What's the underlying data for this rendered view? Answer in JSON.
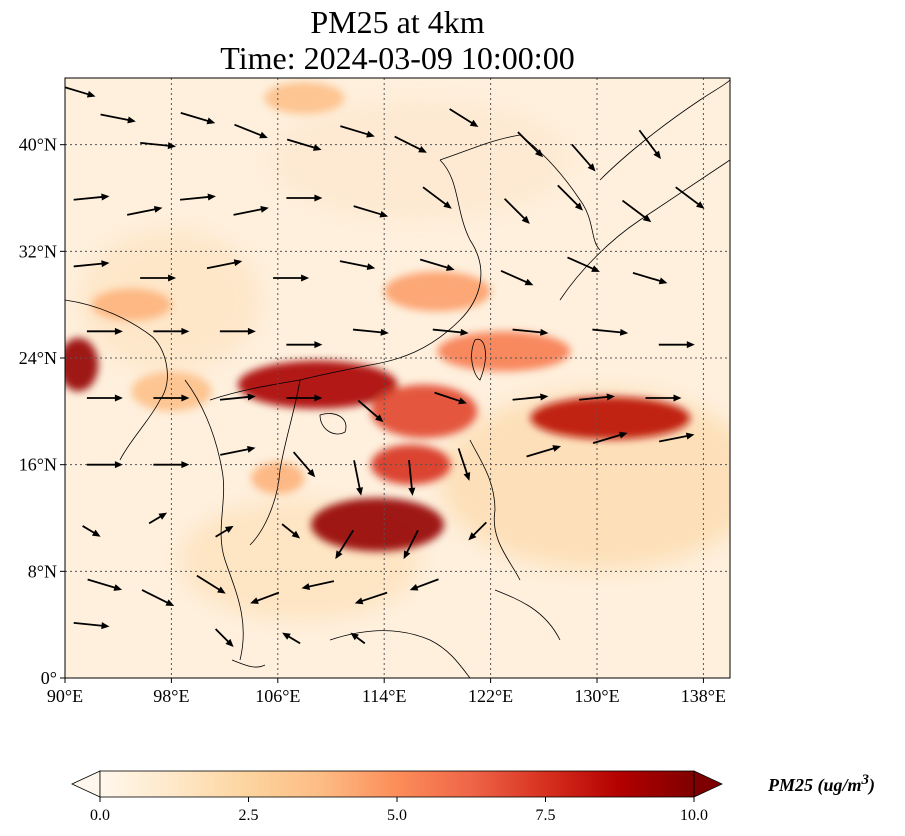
{
  "title_line1": "PM25 at 4km",
  "title_line2": "Time: 2024-03-09 10:00:00",
  "map": {
    "lon_range": [
      90,
      140
    ],
    "lat_range": [
      0,
      45
    ],
    "lon_ticks": [
      {
        "value": 90,
        "label": "90°E"
      },
      {
        "value": 98,
        "label": "98°E"
      },
      {
        "value": 106,
        "label": "106°E"
      },
      {
        "value": 114,
        "label": "114°E"
      },
      {
        "value": 122,
        "label": "122°E"
      },
      {
        "value": 130,
        "label": "130°E"
      },
      {
        "value": 138,
        "label": "138°E"
      }
    ],
    "lat_ticks": [
      {
        "value": 0,
        "label": "0°"
      },
      {
        "value": 8,
        "label": "8°N"
      },
      {
        "value": 16,
        "label": "16°N"
      },
      {
        "value": 24,
        "label": "24°N"
      },
      {
        "value": 32,
        "label": "32°N"
      },
      {
        "value": 40,
        "label": "40°N"
      }
    ],
    "gridlines": "dotted",
    "plumes": [
      {
        "lon": 109,
        "lat": 22.0,
        "rx": 6,
        "ry": 1.8,
        "value": 9.0
      },
      {
        "lon": 117,
        "lat": 20.0,
        "rx": 4,
        "ry": 2.0,
        "value": 7.0
      },
      {
        "lon": 113.5,
        "lat": 11.5,
        "rx": 5,
        "ry": 2.0,
        "value": 9.5
      },
      {
        "lon": 116,
        "lat": 16.0,
        "rx": 3,
        "ry": 1.5,
        "value": 7.5
      },
      {
        "lon": 131,
        "lat": 19.5,
        "rx": 6,
        "ry": 1.6,
        "value": 8.5
      },
      {
        "lon": 123,
        "lat": 24.5,
        "rx": 5,
        "ry": 1.5,
        "value": 5.5
      },
      {
        "lon": 118,
        "lat": 29.0,
        "rx": 4,
        "ry": 1.5,
        "value": 4.5
      },
      {
        "lon": 91,
        "lat": 23.5,
        "rx": 1.5,
        "ry": 2.0,
        "value": 9.5
      },
      {
        "lon": 95,
        "lat": 28.0,
        "rx": 3,
        "ry": 1.2,
        "value": 4.0
      },
      {
        "lon": 108,
        "lat": 43.5,
        "rx": 3,
        "ry": 1.2,
        "value": 3.5
      },
      {
        "lon": 106,
        "lat": 15.0,
        "rx": 2,
        "ry": 1.2,
        "value": 4.0
      },
      {
        "lon": 98,
        "lat": 21.5,
        "rx": 3,
        "ry": 1.5,
        "value": 3.5
      }
    ],
    "wind_arrows": [
      {
        "lon": 91,
        "lat": 44,
        "u": 1.0,
        "v": -0.3
      },
      {
        "lon": 94,
        "lat": 42,
        "u": 1.0,
        "v": -0.2
      },
      {
        "lon": 97,
        "lat": 40,
        "u": 1.0,
        "v": -0.1
      },
      {
        "lon": 100,
        "lat": 42,
        "u": 1.0,
        "v": -0.3
      },
      {
        "lon": 104,
        "lat": 41,
        "u": 1.0,
        "v": -0.4
      },
      {
        "lon": 108,
        "lat": 40,
        "u": 1.0,
        "v": -0.3
      },
      {
        "lon": 112,
        "lat": 41,
        "u": 1.0,
        "v": -0.3
      },
      {
        "lon": 116,
        "lat": 40,
        "u": 1.0,
        "v": -0.5
      },
      {
        "lon": 120,
        "lat": 42,
        "u": 0.8,
        "v": -0.5
      },
      {
        "lon": 125,
        "lat": 40,
        "u": 0.7,
        "v": -0.7
      },
      {
        "lon": 129,
        "lat": 39,
        "u": 0.7,
        "v": -0.8
      },
      {
        "lon": 134,
        "lat": 40,
        "u": 0.6,
        "v": -0.8
      },
      {
        "lon": 92,
        "lat": 36,
        "u": 1.0,
        "v": 0.1
      },
      {
        "lon": 96,
        "lat": 35,
        "u": 1.0,
        "v": 0.2
      },
      {
        "lon": 100,
        "lat": 36,
        "u": 1.0,
        "v": 0.1
      },
      {
        "lon": 104,
        "lat": 35,
        "u": 1.0,
        "v": 0.2
      },
      {
        "lon": 108,
        "lat": 36,
        "u": 1.0,
        "v": 0.0
      },
      {
        "lon": 113,
        "lat": 35,
        "u": 1.0,
        "v": -0.3
      },
      {
        "lon": 118,
        "lat": 36,
        "u": 0.8,
        "v": -0.6
      },
      {
        "lon": 124,
        "lat": 35,
        "u": 0.7,
        "v": -0.7
      },
      {
        "lon": 128,
        "lat": 36,
        "u": 0.7,
        "v": -0.7
      },
      {
        "lon": 133,
        "lat": 35,
        "u": 0.8,
        "v": -0.6
      },
      {
        "lon": 137,
        "lat": 36,
        "u": 0.8,
        "v": -0.6
      },
      {
        "lon": 92,
        "lat": 31,
        "u": 1.0,
        "v": 0.1
      },
      {
        "lon": 97,
        "lat": 30,
        "u": 1.0,
        "v": 0.0
      },
      {
        "lon": 102,
        "lat": 31,
        "u": 1.0,
        "v": 0.2
      },
      {
        "lon": 107,
        "lat": 30,
        "u": 1.0,
        "v": 0.0
      },
      {
        "lon": 112,
        "lat": 31,
        "u": 1.0,
        "v": -0.2
      },
      {
        "lon": 118,
        "lat": 31,
        "u": 1.0,
        "v": -0.3
      },
      {
        "lon": 124,
        "lat": 30,
        "u": 0.9,
        "v": -0.4
      },
      {
        "lon": 129,
        "lat": 31,
        "u": 0.9,
        "v": -0.4
      },
      {
        "lon": 134,
        "lat": 30,
        "u": 1.0,
        "v": -0.3
      },
      {
        "lon": 93,
        "lat": 26,
        "u": 1.0,
        "v": 0.0
      },
      {
        "lon": 98,
        "lat": 26,
        "u": 1.0,
        "v": 0.0
      },
      {
        "lon": 103,
        "lat": 26,
        "u": 1.0,
        "v": 0.0
      },
      {
        "lon": 108,
        "lat": 25,
        "u": 1.0,
        "v": 0.0
      },
      {
        "lon": 113,
        "lat": 26,
        "u": 1.0,
        "v": -0.1
      },
      {
        "lon": 119,
        "lat": 26,
        "u": 1.0,
        "v": -0.1
      },
      {
        "lon": 125,
        "lat": 26,
        "u": 1.0,
        "v": -0.1
      },
      {
        "lon": 131,
        "lat": 26,
        "u": 1.0,
        "v": -0.1
      },
      {
        "lon": 136,
        "lat": 25,
        "u": 1.0,
        "v": 0.0
      },
      {
        "lon": 93,
        "lat": 21,
        "u": 1.0,
        "v": 0.0
      },
      {
        "lon": 98,
        "lat": 21,
        "u": 1.0,
        "v": 0.0
      },
      {
        "lon": 103,
        "lat": 21,
        "u": 1.0,
        "v": 0.1
      },
      {
        "lon": 108,
        "lat": 21,
        "u": 1.0,
        "v": 0.0
      },
      {
        "lon": 113,
        "lat": 20,
        "u": 0.7,
        "v": -0.6
      },
      {
        "lon": 119,
        "lat": 21,
        "u": 0.9,
        "v": -0.3
      },
      {
        "lon": 125,
        "lat": 21,
        "u": 1.0,
        "v": 0.1
      },
      {
        "lon": 130,
        "lat": 21,
        "u": 1.0,
        "v": 0.1
      },
      {
        "lon": 135,
        "lat": 21,
        "u": 1.0,
        "v": 0.0
      },
      {
        "lon": 93,
        "lat": 16,
        "u": 1.0,
        "v": 0.0
      },
      {
        "lon": 98,
        "lat": 16,
        "u": 1.0,
        "v": 0.0
      },
      {
        "lon": 103,
        "lat": 17,
        "u": 1.0,
        "v": 0.2
      },
      {
        "lon": 108,
        "lat": 16,
        "u": 0.6,
        "v": -0.7
      },
      {
        "lon": 112,
        "lat": 15,
        "u": 0.2,
        "v": -1.0
      },
      {
        "lon": 116,
        "lat": 15,
        "u": 0.1,
        "v": -1.0
      },
      {
        "lon": 120,
        "lat": 16,
        "u": 0.3,
        "v": -0.9
      },
      {
        "lon": 126,
        "lat": 17,
        "u": 1.0,
        "v": 0.3
      },
      {
        "lon": 131,
        "lat": 18,
        "u": 1.0,
        "v": 0.3
      },
      {
        "lon": 136,
        "lat": 18,
        "u": 1.0,
        "v": 0.2
      },
      {
        "lon": 92,
        "lat": 11,
        "u": 0.5,
        "v": -0.3
      },
      {
        "lon": 97,
        "lat": 12,
        "u": 0.5,
        "v": 0.3
      },
      {
        "lon": 102,
        "lat": 11,
        "u": 0.5,
        "v": 0.3
      },
      {
        "lon": 107,
        "lat": 11,
        "u": 0.5,
        "v": -0.4
      },
      {
        "lon": 111,
        "lat": 10,
        "u": -0.5,
        "v": -0.8
      },
      {
        "lon": 116,
        "lat": 10,
        "u": -0.4,
        "v": -0.8
      },
      {
        "lon": 121,
        "lat": 11,
        "u": -0.5,
        "v": -0.5
      },
      {
        "lon": 93,
        "lat": 7,
        "u": 1.0,
        "v": -0.3
      },
      {
        "lon": 97,
        "lat": 6,
        "u": 1.0,
        "v": -0.5
      },
      {
        "lon": 101,
        "lat": 7,
        "u": 0.8,
        "v": -0.5
      },
      {
        "lon": 105,
        "lat": 6,
        "u": -0.8,
        "v": -0.3
      },
      {
        "lon": 109,
        "lat": 7,
        "u": -0.9,
        "v": -0.2
      },
      {
        "lon": 113,
        "lat": 6,
        "u": -0.9,
        "v": -0.3
      },
      {
        "lon": 117,
        "lat": 7,
        "u": -0.8,
        "v": -0.3
      },
      {
        "lon": 92,
        "lat": 4,
        "u": 1.0,
        "v": -0.1
      },
      {
        "lon": 102,
        "lat": 3,
        "u": 0.5,
        "v": -0.5
      },
      {
        "lon": 107,
        "lat": 3,
        "u": -0.5,
        "v": 0.3
      },
      {
        "lon": 112,
        "lat": 3,
        "u": -0.4,
        "v": 0.3
      }
    ]
  },
  "colorbar": {
    "label": "PM25 (ug/m",
    "label_superscript": "3",
    "label_close": ")",
    "vmin": 0.0,
    "vmax": 10.0,
    "colormap": "OrRd",
    "colors": [
      "#fff7ec",
      "#fee8c8",
      "#fdd49e",
      "#fdbb84",
      "#fc8d59",
      "#ef6548",
      "#d7301f",
      "#b30000",
      "#7f0000"
    ],
    "extend": "both",
    "ticks": [
      {
        "value": 0.0,
        "label": "0.0"
      },
      {
        "value": 2.5,
        "label": "2.5"
      },
      {
        "value": 5.0,
        "label": "5.0"
      },
      {
        "value": 7.5,
        "label": "7.5"
      },
      {
        "value": 10.0,
        "label": "10.0"
      }
    ]
  }
}
